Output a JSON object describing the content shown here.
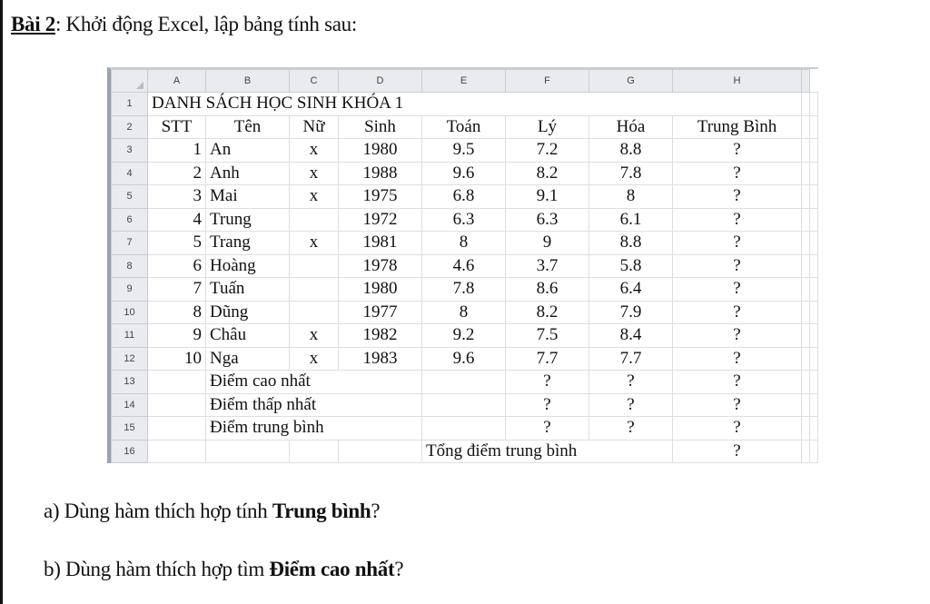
{
  "title": {
    "label": "Bài 2",
    "rest": ": Khởi động Excel, lập bảng tính sau:"
  },
  "sheet": {
    "columns": [
      "A",
      "B",
      "C",
      "D",
      "E",
      "F",
      "G",
      "H"
    ],
    "rows": [
      {
        "n": "1",
        "cells": [
          "DANH SÁCH HỌC SINH KHÓA 1"
        ]
      },
      {
        "n": "2",
        "cells": [
          "STT",
          "Tên",
          "Nữ",
          "Sinh",
          "Toán",
          "Lý",
          "Hóa",
          "Trung Bình"
        ]
      },
      {
        "n": "3",
        "cells": [
          "1",
          "An",
          "x",
          "1980",
          "9.5",
          "7.2",
          "8.8",
          "?"
        ]
      },
      {
        "n": "4",
        "cells": [
          "2",
          "Anh",
          "x",
          "1988",
          "9.6",
          "8.2",
          "7.8",
          "?"
        ]
      },
      {
        "n": "5",
        "cells": [
          "3",
          "Mai",
          "x",
          "1975",
          "6.8",
          "9.1",
          "8",
          "?"
        ]
      },
      {
        "n": "6",
        "cells": [
          "4",
          "Trung",
          "",
          "1972",
          "6.3",
          "6.3",
          "6.1",
          "?"
        ]
      },
      {
        "n": "7",
        "cells": [
          "5",
          "Trang",
          "x",
          "1981",
          "8",
          "9",
          "8.8",
          "?"
        ]
      },
      {
        "n": "8",
        "cells": [
          "6",
          "Hoàng",
          "",
          "1978",
          "4.6",
          "3.7",
          "5.8",
          "?"
        ]
      },
      {
        "n": "9",
        "cells": [
          "7",
          "Tuấn",
          "",
          "1980",
          "7.8",
          "8.6",
          "6.4",
          "?"
        ]
      },
      {
        "n": "10",
        "cells": [
          "8",
          "Dũng",
          "",
          "1977",
          "8",
          "8.2",
          "7.9",
          "?"
        ]
      },
      {
        "n": "11",
        "cells": [
          "9",
          "Châu",
          "x",
          "1982",
          "9.2",
          "7.5",
          "8.4",
          "?"
        ]
      },
      {
        "n": "12",
        "cells": [
          "10",
          "Nga",
          "x",
          "1983",
          "9.6",
          "7.7",
          "7.7",
          "?"
        ]
      },
      {
        "n": "13",
        "cells": [
          "",
          "Điểm cao nhất",
          "?",
          "?",
          "?"
        ]
      },
      {
        "n": "14",
        "cells": [
          "",
          "Điểm thấp nhất",
          "?",
          "?",
          "?"
        ]
      },
      {
        "n": "15",
        "cells": [
          "",
          "Điểm trung bình",
          "?",
          "?",
          "?"
        ]
      },
      {
        "n": "16",
        "cells": [
          "",
          "Tổng điểm trung bình",
          "?"
        ]
      }
    ]
  },
  "questions": [
    {
      "prefix": "a) Dùng hàm thích hợp tính ",
      "bold": "Trung bình",
      "suffix": "?"
    },
    {
      "prefix": "b) Dùng hàm thích hợp tìm ",
      "bold": "Điểm cao nhất",
      "suffix": "?"
    }
  ]
}
